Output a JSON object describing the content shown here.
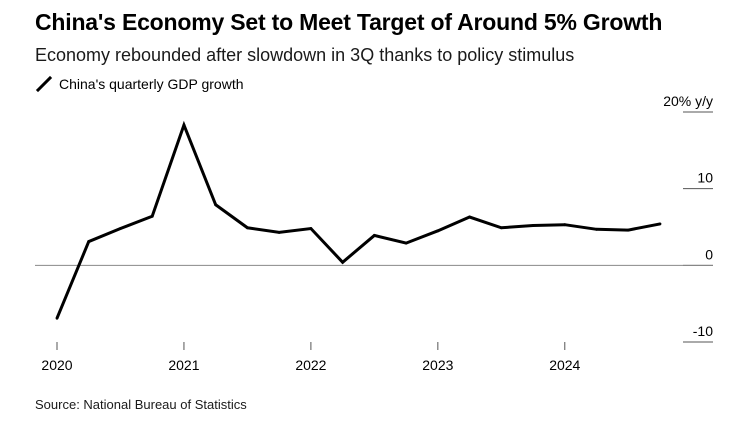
{
  "header": {
    "title": "China's Economy Set to Meet Target of Around 5% Growth",
    "subtitle": "Economy rebounded after slowdown in 3Q thanks to policy stimulus"
  },
  "source": "Source: National Bureau of Statistics",
  "colors": {
    "line": "#000000",
    "zero_line": "#888888",
    "tick": "#555555"
  },
  "chart_data": {
    "type": "line",
    "title": "China's Economy Set to Meet Target of Around 5% Growth",
    "subtitle": "Economy rebounded after slowdown in 3Q thanks to policy stimulus",
    "xlabel": "",
    "ylabel": "",
    "ylim": [
      -10,
      20
    ],
    "xlim": [
      "2020-Q1",
      "2024-Q4"
    ],
    "grid": false,
    "legend_position": "top-left",
    "y_axis_side": "right",
    "x_ticks": [
      "2020",
      "2021",
      "2022",
      "2023",
      "2024"
    ],
    "y_ticks": [
      {
        "value": 20,
        "label": "20% y/y"
      },
      {
        "value": 10,
        "label": "10"
      },
      {
        "value": 0,
        "label": "0"
      },
      {
        "value": -10,
        "label": "-10"
      }
    ],
    "x": [
      "2020-Q1",
      "2020-Q2",
      "2020-Q3",
      "2020-Q4",
      "2021-Q1",
      "2021-Q2",
      "2021-Q3",
      "2021-Q4",
      "2022-Q1",
      "2022-Q2",
      "2022-Q3",
      "2022-Q4",
      "2023-Q1",
      "2023-Q2",
      "2023-Q3",
      "2023-Q4",
      "2024-Q1",
      "2024-Q2",
      "2024-Q3",
      "2024-Q4"
    ],
    "series": [
      {
        "name": "China's quarterly GDP growth",
        "values": [
          -6.9,
          3.1,
          4.8,
          6.4,
          18.3,
          7.9,
          4.9,
          4.3,
          4.8,
          0.4,
          3.9,
          2.9,
          4.5,
          6.3,
          4.9,
          5.2,
          5.3,
          4.7,
          4.6,
          5.4
        ]
      }
    ]
  }
}
